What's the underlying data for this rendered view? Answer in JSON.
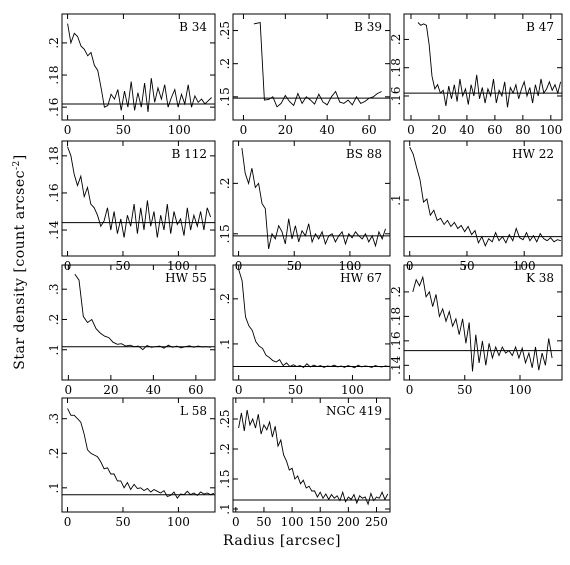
{
  "figure": {
    "ylabel": "Star density [count arcsec",
    "ylabel_sup": "-2",
    "ylabel_end": "]",
    "xlabel": "Radius [arcsec]"
  },
  "chart_data": [
    {
      "type": "line",
      "name": "B 34",
      "xlim": [
        -5,
        132
      ],
      "ylim": [
        0.152,
        0.218
      ],
      "xticks": [
        0,
        50,
        100
      ],
      "yticks": [
        0.16,
        0.18,
        0.2
      ],
      "hline": 0.162,
      "x": [
        0,
        3,
        6,
        9,
        12,
        15,
        18,
        21,
        24,
        27,
        30,
        33,
        36,
        39,
        42,
        45,
        48,
        51,
        54,
        57,
        60,
        63,
        66,
        69,
        72,
        75,
        78,
        81,
        84,
        87,
        90,
        93,
        96,
        99,
        102,
        105,
        108,
        111,
        114,
        117,
        120,
        123,
        126,
        129
      ],
      "y": [
        0.212,
        0.2,
        0.206,
        0.204,
        0.198,
        0.196,
        0.192,
        0.194,
        0.186,
        0.183,
        0.172,
        0.16,
        0.161,
        0.168,
        0.165,
        0.171,
        0.158,
        0.17,
        0.16,
        0.176,
        0.158,
        0.169,
        0.16,
        0.175,
        0.157,
        0.178,
        0.163,
        0.172,
        0.165,
        0.174,
        0.16,
        0.166,
        0.171,
        0.16,
        0.168,
        0.162,
        0.174,
        0.16,
        0.167,
        0.163,
        0.165,
        0.162,
        0.164,
        0.166
      ]
    },
    {
      "type": "line",
      "name": "B 39",
      "xlim": [
        -5,
        70
      ],
      "ylim": [
        0.115,
        0.275
      ],
      "xticks": [
        0,
        20,
        40,
        60
      ],
      "yticks": [
        0.15,
        0.2,
        0.25
      ],
      "hline": 0.148,
      "x": [
        5,
        8,
        10,
        12,
        14,
        16,
        18,
        20,
        22,
        24,
        26,
        28,
        30,
        32,
        34,
        36,
        38,
        40,
        42,
        44,
        46,
        48,
        50,
        52,
        54,
        56,
        58,
        60,
        62,
        64,
        66
      ],
      "y": [
        0.26,
        0.262,
        0.145,
        0.146,
        0.15,
        0.135,
        0.14,
        0.152,
        0.143,
        0.137,
        0.155,
        0.14,
        0.15,
        0.145,
        0.139,
        0.154,
        0.142,
        0.138,
        0.15,
        0.158,
        0.142,
        0.14,
        0.145,
        0.138,
        0.15,
        0.14,
        0.143,
        0.148,
        0.15,
        0.155,
        0.158
      ]
    },
    {
      "type": "line",
      "name": "B 47",
      "xlim": [
        -5,
        108
      ],
      "ylim": [
        0.143,
        0.218
      ],
      "xticks": [
        0,
        20,
        40,
        60,
        80,
        100
      ],
      "yticks": [
        0.16,
        0.18,
        0.2
      ],
      "hline": 0.162,
      "x": [
        5,
        7,
        9,
        11,
        13,
        15,
        17,
        19,
        21,
        23,
        25,
        27,
        29,
        31,
        33,
        35,
        37,
        39,
        41,
        43,
        45,
        47,
        49,
        51,
        53,
        55,
        57,
        59,
        61,
        63,
        65,
        67,
        69,
        71,
        73,
        75,
        77,
        79,
        81,
        83,
        85,
        87,
        89,
        91,
        93,
        95,
        97,
        99,
        101,
        103,
        105,
        107
      ],
      "y": [
        0.212,
        0.21,
        0.211,
        0.21,
        0.196,
        0.174,
        0.165,
        0.168,
        0.162,
        0.164,
        0.153,
        0.167,
        0.158,
        0.168,
        0.156,
        0.172,
        0.16,
        0.165,
        0.154,
        0.168,
        0.16,
        0.175,
        0.158,
        0.166,
        0.155,
        0.165,
        0.16,
        0.172,
        0.155,
        0.164,
        0.16,
        0.17,
        0.152,
        0.166,
        0.162,
        0.168,
        0.158,
        0.165,
        0.17,
        0.16,
        0.166,
        0.155,
        0.168,
        0.16,
        0.172,
        0.162,
        0.165,
        0.17,
        0.164,
        0.168,
        0.162,
        0.17
      ]
    },
    {
      "type": "line",
      "name": "B 112",
      "xlim": [
        -5,
        133
      ],
      "ylim": [
        0.126,
        0.188
      ],
      "xticks": [
        0,
        50,
        100
      ],
      "yticks": [
        0.14,
        0.16,
        0.18
      ],
      "hline": 0.144,
      "x": [
        0,
        3,
        6,
        9,
        12,
        15,
        18,
        21,
        24,
        27,
        30,
        33,
        36,
        39,
        42,
        45,
        48,
        51,
        54,
        57,
        60,
        63,
        66,
        69,
        72,
        75,
        78,
        81,
        84,
        87,
        90,
        93,
        96,
        99,
        102,
        105,
        108,
        111,
        114,
        117,
        120,
        123,
        126,
        129
      ],
      "y": [
        0.185,
        0.18,
        0.17,
        0.164,
        0.169,
        0.158,
        0.163,
        0.154,
        0.152,
        0.148,
        0.142,
        0.145,
        0.152,
        0.14,
        0.15,
        0.138,
        0.146,
        0.136,
        0.148,
        0.142,
        0.154,
        0.138,
        0.152,
        0.14,
        0.156,
        0.142,
        0.15,
        0.136,
        0.148,
        0.14,
        0.154,
        0.138,
        0.15,
        0.143,
        0.146,
        0.137,
        0.152,
        0.14,
        0.148,
        0.142,
        0.15,
        0.14,
        0.152,
        0.147
      ]
    },
    {
      "type": "line",
      "name": "BS 88",
      "xlim": [
        -5,
        136
      ],
      "ylim": [
        0.128,
        0.242
      ],
      "xticks": [
        0,
        50,
        100
      ],
      "yticks": [
        0.15,
        0.2
      ],
      "hline": 0.148,
      "x": [
        3,
        6,
        9,
        12,
        15,
        18,
        21,
        24,
        27,
        30,
        33,
        36,
        39,
        42,
        45,
        48,
        51,
        54,
        57,
        60,
        63,
        66,
        69,
        72,
        75,
        78,
        81,
        84,
        87,
        90,
        93,
        96,
        99,
        102,
        105,
        108,
        111,
        114,
        117,
        120,
        123,
        126,
        129,
        132
      ],
      "y": [
        0.235,
        0.21,
        0.2,
        0.215,
        0.196,
        0.2,
        0.18,
        0.175,
        0.135,
        0.15,
        0.145,
        0.158,
        0.152,
        0.14,
        0.165,
        0.145,
        0.158,
        0.142,
        0.153,
        0.148,
        0.16,
        0.142,
        0.15,
        0.145,
        0.152,
        0.14,
        0.148,
        0.15,
        0.142,
        0.148,
        0.152,
        0.14,
        0.15,
        0.146,
        0.152,
        0.148,
        0.145,
        0.15,
        0.142,
        0.148,
        0.138,
        0.152,
        0.145,
        0.155
      ]
    },
    {
      "type": "line",
      "name": "HW 22",
      "xlim": [
        -5,
        133
      ],
      "ylim": [
        0.045,
        0.158
      ],
      "xticks": [
        0,
        50,
        100
      ],
      "yticks": [
        0.1
      ],
      "hline": 0.064,
      "x": [
        0,
        3,
        6,
        9,
        12,
        15,
        18,
        21,
        24,
        27,
        30,
        33,
        36,
        39,
        42,
        45,
        48,
        51,
        54,
        57,
        60,
        63,
        66,
        69,
        72,
        75,
        78,
        81,
        84,
        87,
        90,
        93,
        96,
        99,
        102,
        105,
        108,
        111,
        114,
        117,
        120,
        123,
        126,
        129,
        132
      ],
      "y": [
        0.152,
        0.145,
        0.132,
        0.12,
        0.098,
        0.101,
        0.085,
        0.09,
        0.08,
        0.082,
        0.076,
        0.08,
        0.074,
        0.078,
        0.072,
        0.075,
        0.069,
        0.074,
        0.066,
        0.07,
        0.058,
        0.064,
        0.055,
        0.062,
        0.059,
        0.068,
        0.06,
        0.064,
        0.058,
        0.066,
        0.06,
        0.072,
        0.063,
        0.061,
        0.068,
        0.06,
        0.065,
        0.059,
        0.067,
        0.062,
        0.06,
        0.063,
        0.059,
        0.061,
        0.06
      ]
    },
    {
      "type": "line",
      "name": "HW 55",
      "xlim": [
        -3,
        69
      ],
      "ylim": [
        0.0,
        0.38
      ],
      "xticks": [
        0,
        20,
        40,
        60
      ],
      "yticks": [
        0.1,
        0.2,
        0.3
      ],
      "hline": 0.11,
      "x": [
        3,
        5,
        7,
        9,
        11,
        13,
        15,
        17,
        19,
        21,
        23,
        25,
        27,
        29,
        31,
        33,
        35,
        37,
        39,
        41,
        43,
        45,
        47,
        49,
        51,
        53,
        55,
        57,
        59,
        61,
        63,
        65,
        67
      ],
      "y": [
        0.35,
        0.33,
        0.21,
        0.19,
        0.2,
        0.17,
        0.155,
        0.145,
        0.14,
        0.125,
        0.118,
        0.12,
        0.112,
        0.115,
        0.11,
        0.112,
        0.1,
        0.114,
        0.108,
        0.11,
        0.112,
        0.105,
        0.115,
        0.108,
        0.112,
        0.106,
        0.11,
        0.113,
        0.108,
        0.112,
        0.109,
        0.11,
        0.108
      ]
    },
    {
      "type": "line",
      "name": "HW 67",
      "xlim": [
        -5,
        133
      ],
      "ylim": [
        0.02,
        0.275
      ],
      "xticks": [
        0,
        50,
        100
      ],
      "yticks": [
        0.1,
        0.2
      ],
      "hline": 0.05,
      "x": [
        0,
        3,
        6,
        9,
        12,
        15,
        18,
        21,
        24,
        27,
        30,
        33,
        36,
        39,
        42,
        45,
        48,
        51,
        54,
        57,
        60,
        63,
        66,
        69,
        72,
        75,
        78,
        81,
        84,
        87,
        90,
        93,
        96,
        99,
        102,
        105,
        108,
        111,
        114,
        117,
        120,
        123,
        126,
        129,
        132
      ],
      "y": [
        0.265,
        0.24,
        0.16,
        0.14,
        0.13,
        0.105,
        0.095,
        0.09,
        0.075,
        0.07,
        0.063,
        0.06,
        0.065,
        0.052,
        0.058,
        0.05,
        0.054,
        0.05,
        0.052,
        0.048,
        0.056,
        0.049,
        0.053,
        0.05,
        0.052,
        0.048,
        0.051,
        0.05,
        0.053,
        0.049,
        0.051,
        0.048,
        0.052,
        0.05,
        0.047,
        0.053,
        0.049,
        0.051,
        0.05,
        0.048,
        0.052,
        0.05,
        0.049,
        0.051,
        0.05
      ]
    },
    {
      "type": "line",
      "name": "K 38",
      "xlim": [
        -5,
        138
      ],
      "ylim": [
        0.128,
        0.222
      ],
      "xticks": [
        0,
        50,
        100
      ],
      "yticks": [
        0.14,
        0.16,
        0.18,
        0.2
      ],
      "hline": 0.152,
      "x": [
        3,
        6,
        9,
        12,
        15,
        18,
        21,
        24,
        27,
        30,
        33,
        36,
        39,
        42,
        45,
        48,
        51,
        54,
        57,
        60,
        63,
        66,
        69,
        72,
        75,
        78,
        81,
        84,
        87,
        90,
        93,
        96,
        99,
        102,
        105,
        108,
        111,
        114,
        117,
        120,
        123,
        126,
        129
      ],
      "y": [
        0.2,
        0.21,
        0.205,
        0.212,
        0.196,
        0.2,
        0.188,
        0.198,
        0.18,
        0.186,
        0.176,
        0.184,
        0.172,
        0.178,
        0.165,
        0.178,
        0.158,
        0.175,
        0.135,
        0.165,
        0.142,
        0.16,
        0.14,
        0.158,
        0.146,
        0.155,
        0.148,
        0.155,
        0.15,
        0.152,
        0.148,
        0.155,
        0.146,
        0.154,
        0.142,
        0.15,
        0.138,
        0.155,
        0.136,
        0.15,
        0.14,
        0.162,
        0.146
      ]
    },
    {
      "type": "line",
      "name": "L 58",
      "xlim": [
        -5,
        133
      ],
      "ylim": [
        0.03,
        0.36
      ],
      "xticks": [
        0,
        50,
        100
      ],
      "yticks": [
        0.1,
        0.2,
        0.3
      ],
      "hline": 0.08,
      "x": [
        0,
        3,
        6,
        9,
        12,
        15,
        18,
        21,
        24,
        27,
        30,
        33,
        36,
        39,
        42,
        45,
        48,
        51,
        54,
        57,
        60,
        63,
        66,
        69,
        72,
        75,
        78,
        81,
        84,
        87,
        90,
        93,
        96,
        99,
        102,
        105,
        108,
        111,
        114,
        117,
        120,
        123,
        126,
        129,
        132
      ],
      "y": [
        0.33,
        0.31,
        0.31,
        0.3,
        0.29,
        0.255,
        0.21,
        0.2,
        0.195,
        0.19,
        0.175,
        0.155,
        0.158,
        0.14,
        0.14,
        0.12,
        0.12,
        0.1,
        0.115,
        0.095,
        0.11,
        0.098,
        0.1,
        0.092,
        0.098,
        0.088,
        0.095,
        0.09,
        0.085,
        0.092,
        0.075,
        0.078,
        0.088,
        0.07,
        0.082,
        0.08,
        0.09,
        0.08,
        0.085,
        0.078,
        0.088,
        0.082,
        0.085,
        0.08,
        0.084
      ]
    },
    {
      "type": "line",
      "name": "NGC 419",
      "xlim": [
        -5,
        274
      ],
      "ylim": [
        0.095,
        0.285
      ],
      "xticks": [
        0,
        50,
        100,
        150,
        200,
        250
      ],
      "yticks": [
        0.1,
        0.15,
        0.2,
        0.25
      ],
      "hline": 0.115,
      "x": [
        5,
        10,
        15,
        20,
        25,
        30,
        35,
        40,
        45,
        50,
        55,
        60,
        65,
        70,
        75,
        80,
        85,
        90,
        95,
        100,
        105,
        110,
        115,
        120,
        125,
        130,
        135,
        140,
        145,
        150,
        155,
        160,
        165,
        170,
        175,
        180,
        185,
        190,
        195,
        200,
        205,
        210,
        215,
        220,
        225,
        230,
        235,
        240,
        245,
        250,
        255,
        260,
        265,
        270
      ],
      "y": [
        0.235,
        0.26,
        0.23,
        0.265,
        0.24,
        0.25,
        0.235,
        0.258,
        0.225,
        0.24,
        0.232,
        0.245,
        0.22,
        0.238,
        0.205,
        0.215,
        0.19,
        0.18,
        0.165,
        0.168,
        0.15,
        0.155,
        0.142,
        0.148,
        0.135,
        0.138,
        0.13,
        0.13,
        0.12,
        0.128,
        0.118,
        0.125,
        0.116,
        0.124,
        0.118,
        0.122,
        0.114,
        0.128,
        0.112,
        0.12,
        0.116,
        0.124,
        0.11,
        0.122,
        0.118,
        0.12,
        0.108,
        0.126,
        0.114,
        0.12,
        0.118,
        0.128,
        0.116,
        0.125
      ]
    }
  ]
}
